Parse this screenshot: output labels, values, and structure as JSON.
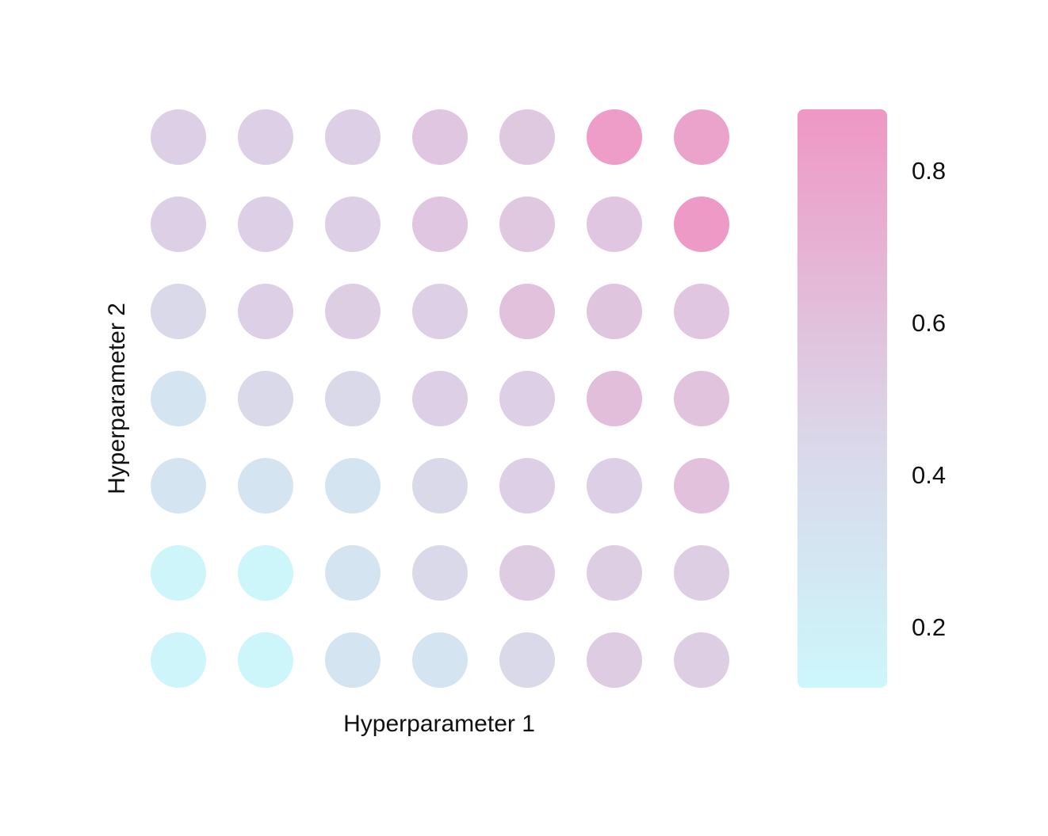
{
  "chart_data": {
    "type": "heatmap",
    "marker": "circle",
    "xlabel": "Hyperparameter 1",
    "ylabel": "Hyperparameter 2",
    "rows": 7,
    "cols": 7,
    "values": [
      [
        0.5,
        0.5,
        0.5,
        0.56,
        0.54,
        0.84,
        0.8
      ],
      [
        0.5,
        0.5,
        0.5,
        0.56,
        0.55,
        0.56,
        0.86
      ],
      [
        0.42,
        0.5,
        0.51,
        0.5,
        0.6,
        0.57,
        0.56
      ],
      [
        0.3,
        0.42,
        0.42,
        0.5,
        0.5,
        0.62,
        0.58
      ],
      [
        0.3,
        0.3,
        0.3,
        0.42,
        0.5,
        0.5,
        0.6
      ],
      [
        0.14,
        0.13,
        0.3,
        0.42,
        0.52,
        0.51,
        0.51
      ],
      [
        0.14,
        0.13,
        0.3,
        0.3,
        0.42,
        0.52,
        0.51
      ]
    ],
    "colorbar": {
      "min": 0.12,
      "max": 0.88,
      "ticks": [
        0.8,
        0.6,
        0.4,
        0.2
      ],
      "tick_labels": [
        "0.8",
        "0.6",
        "0.4",
        "0.2"
      ],
      "low_color": "#ccf7fb",
      "mid_color": "#dbd5e8",
      "high_color": "#ef97c4"
    },
    "grid": false,
    "legend": "colorbar-right"
  }
}
